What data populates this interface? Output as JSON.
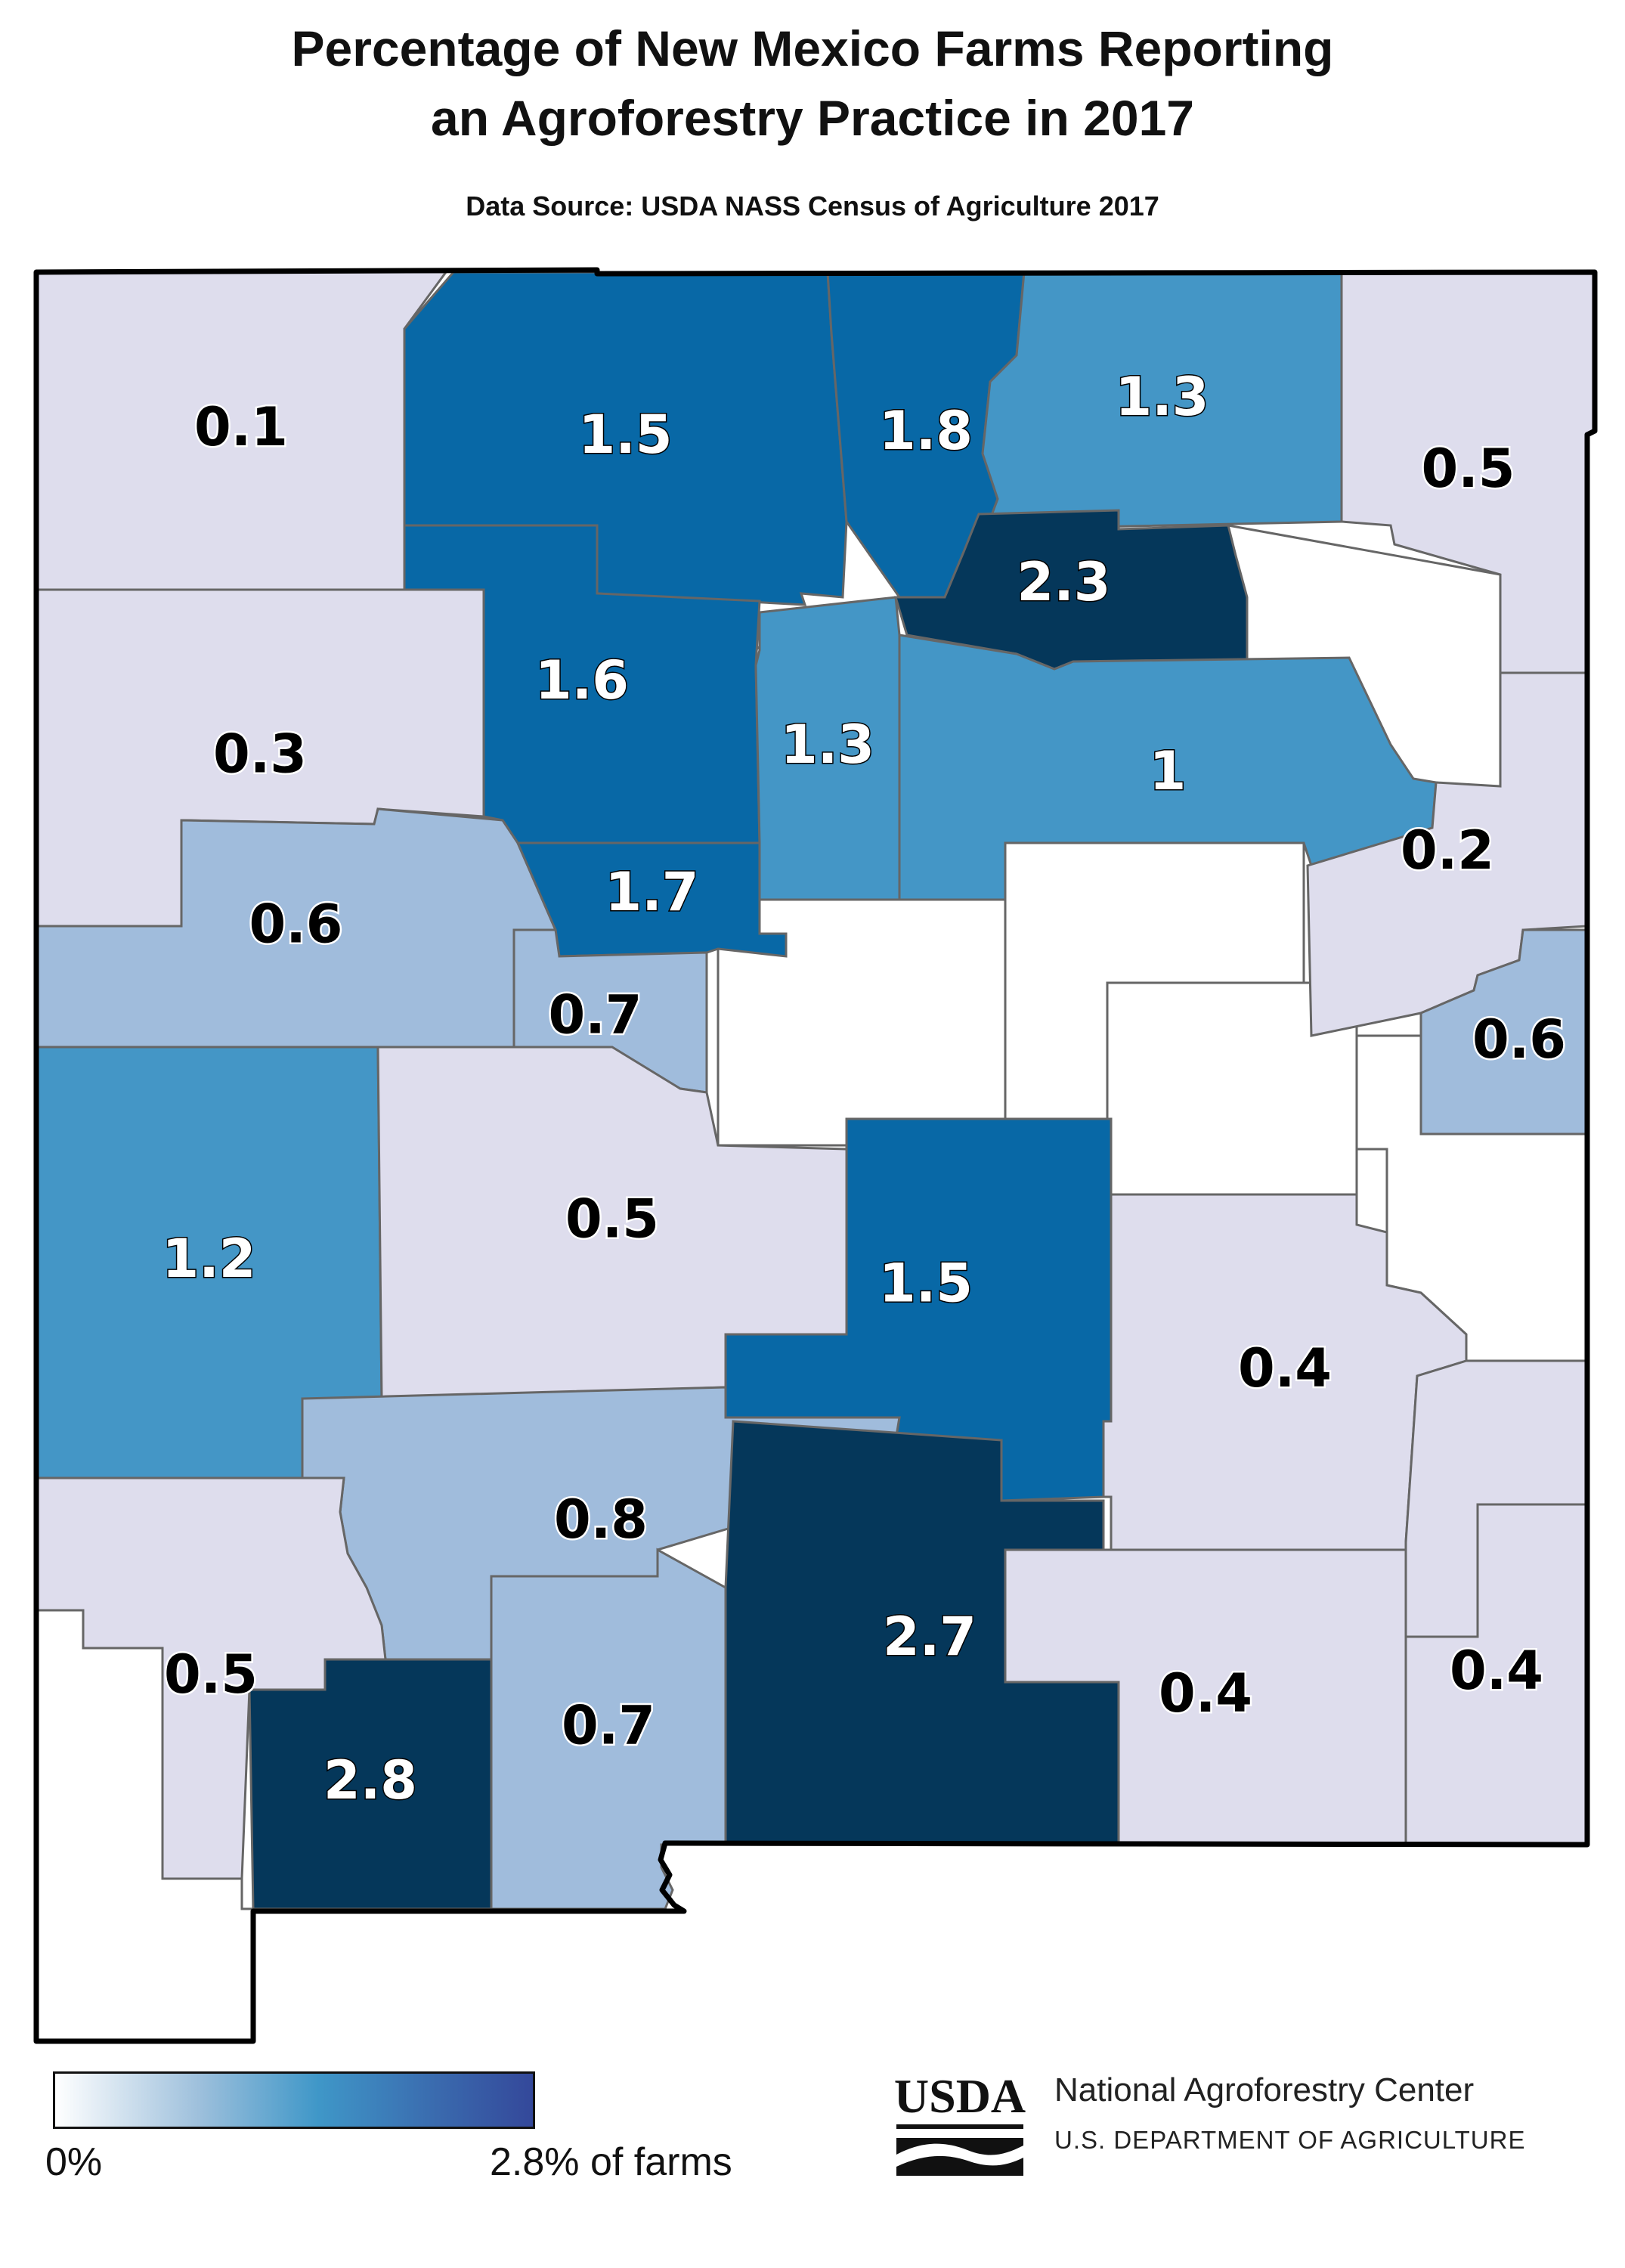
{
  "title_line1": "Percentage of New Mexico Farms Reporting",
  "title_line2": "an Agroforestry Practice in 2017",
  "source": "Data Source: USDA NASS Census of Agriculture 2017",
  "colors": {
    "lowest": "#dedded",
    "low": "#a0bcdc",
    "mid": "#4496c6",
    "high": "#0868a6",
    "highest": "#05375a",
    "no_data": "#ffffff",
    "label_light_text": "#ffffff",
    "label_dark_text": "#000000"
  },
  "counties": [
    {
      "value": "0.1"
    },
    {
      "value": "1.5"
    },
    {
      "value": "1.8"
    },
    {
      "value": "1.3"
    },
    {
      "value": "0.5"
    },
    {
      "value": "2.3"
    },
    {
      "value": "0.3"
    },
    {
      "value": "1.6"
    },
    {
      "value": "1.3"
    },
    {
      "value": "1"
    },
    {
      "value": "0.2"
    },
    {
      "value": "0.6"
    },
    {
      "value": "1.7"
    },
    {
      "value": "0.7"
    },
    {
      "value": "0.6"
    },
    {
      "value": "1.2"
    },
    {
      "value": "0.5"
    },
    {
      "value": "1.5"
    },
    {
      "value": "0.4"
    },
    {
      "value": "0.8"
    },
    {
      "value": "0.5"
    },
    {
      "value": "0.4"
    },
    {
      "value": "2.7"
    },
    {
      "value": "0.4"
    },
    {
      "value": "2.8"
    },
    {
      "value": "0.7"
    }
  ],
  "legend": {
    "min_label": "0%",
    "max_label": "2.8% of farms",
    "gradient": [
      "#ffffff",
      "#9ec0dc",
      "#3f97c8",
      "#3a6aae",
      "#34489a"
    ]
  },
  "footer": {
    "logo_text": "USDA",
    "org_name": "National Agroforestry Center",
    "org_sub": "U.S. DEPARTMENT OF AGRICULTURE"
  }
}
